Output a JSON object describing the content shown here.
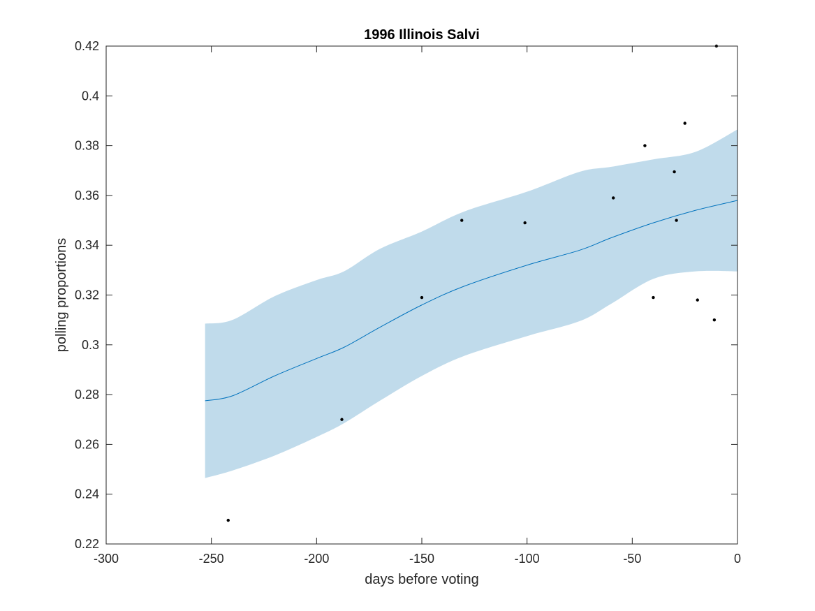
{
  "chart_data": {
    "type": "line",
    "title": "1996 Illinois Salvi",
    "xlabel": "days before voting",
    "ylabel": "polling proportions",
    "xlim": [
      -300,
      0
    ],
    "ylim": [
      0.22,
      0.42
    ],
    "x_ticks": [
      "-300",
      "-250",
      "-200",
      "-150",
      "-100",
      "-50",
      "0"
    ],
    "y_ticks": [
      "0.22",
      "0.24",
      "0.26",
      "0.28",
      "0.3",
      "0.32",
      "0.34",
      "0.36",
      "0.38",
      "0.4",
      "0.42"
    ],
    "grid": false,
    "colors": {
      "band": "#c0dbeb",
      "line": "#0072bd",
      "points": "#000000",
      "axes": "#262626"
    },
    "series": [
      {
        "type": "line",
        "x": [
          -253,
          -240,
          -220,
          -200,
          -187,
          -170,
          -150,
          -130,
          -100,
          -75,
          -60,
          -40,
          -20,
          0
        ],
        "y": [
          0.2775,
          0.2795,
          0.2875,
          0.2945,
          0.299,
          0.307,
          0.316,
          0.3235,
          0.332,
          0.338,
          0.343,
          0.349,
          0.354,
          0.358
        ]
      },
      {
        "type": "area",
        "x": [
          -253,
          -240,
          -220,
          -200,
          -187,
          -170,
          -150,
          -130,
          -100,
          -75,
          -60,
          -40,
          -20,
          0
        ],
        "lower": [
          0.2465,
          0.2495,
          0.2555,
          0.263,
          0.2685,
          0.2775,
          0.2875,
          0.2955,
          0.3035,
          0.3095,
          0.3165,
          0.3265,
          0.3295,
          0.3295
        ],
        "upper": [
          0.3085,
          0.31,
          0.3195,
          0.326,
          0.3295,
          0.3385,
          0.3455,
          0.3535,
          0.3615,
          0.3695,
          0.3715,
          0.3745,
          0.3775,
          0.3865
        ]
      },
      {
        "type": "scatter",
        "x": [
          -242,
          -188,
          -150,
          -131,
          -101,
          -59,
          -44,
          -40,
          -30,
          -29,
          -25,
          -19,
          -11,
          -10
        ],
        "y": [
          0.2295,
          0.27,
          0.319,
          0.35,
          0.349,
          0.359,
          0.38,
          0.319,
          0.3695,
          0.35,
          0.389,
          0.318,
          0.31,
          0.42
        ]
      }
    ]
  }
}
